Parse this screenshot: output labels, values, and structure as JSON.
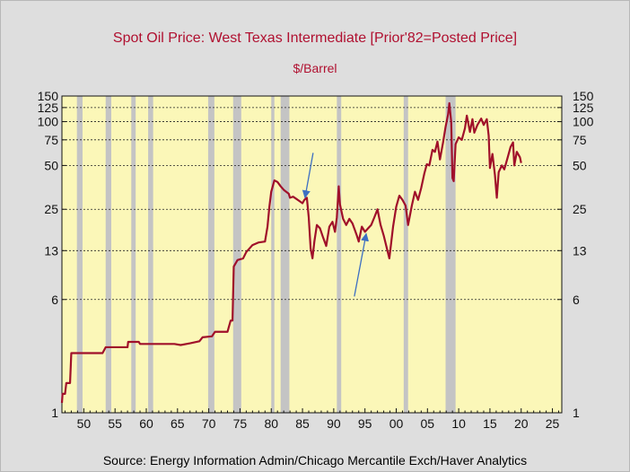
{
  "chart_data": {
    "type": "line",
    "title": "Spot Oil Price: West Texas Intermediate [Prior'82=Posted Price]",
    "subtitle": "$/Barrel",
    "source": "Source:  Energy Information Admin/Chicago Mercantile Exch/Haver Analytics",
    "y_scale": "log",
    "ylim": [
      1,
      150
    ],
    "y_ticks": [
      1,
      6,
      13,
      25,
      50,
      75,
      100,
      125,
      150
    ],
    "xlim": [
      1946.5,
      2026.5
    ],
    "x_ticks": [
      1950,
      1955,
      1960,
      1965,
      1970,
      1975,
      1980,
      1985,
      1990,
      1995,
      2000,
      2005,
      2010,
      2015,
      2020,
      2025
    ],
    "x_tick_labels": [
      "50",
      "55",
      "60",
      "65",
      "70",
      "75",
      "80",
      "85",
      "90",
      "95",
      "00",
      "05",
      "10",
      "15",
      "20",
      "25"
    ],
    "grid": "horizontal dashed at y ticks",
    "plot_background": "#fbf7b8",
    "line_color": "#a0102a",
    "recession_color": "#c4c4c4",
    "recessions": [
      [
        1948.9,
        1949.8
      ],
      [
        1953.5,
        1954.4
      ],
      [
        1957.6,
        1958.3
      ],
      [
        1960.3,
        1961.1
      ],
      [
        1969.9,
        1970.9
      ],
      [
        1973.9,
        1975.2
      ],
      [
        1980.0,
        1980.5
      ],
      [
        1981.5,
        1982.9
      ],
      [
        1990.5,
        1991.2
      ],
      [
        2001.2,
        2001.9
      ],
      [
        2007.9,
        2009.5
      ]
    ],
    "series": [
      {
        "points": [
          [
            1946.5,
            1.17
          ],
          [
            1946.6,
            1.35
          ],
          [
            1947.0,
            1.35
          ],
          [
            1947.2,
            1.6
          ],
          [
            1947.8,
            1.6
          ],
          [
            1948.0,
            2.57
          ],
          [
            1953.0,
            2.57
          ],
          [
            1953.5,
            2.82
          ],
          [
            1957.0,
            2.82
          ],
          [
            1957.1,
            3.07
          ],
          [
            1958.8,
            3.07
          ],
          [
            1959.0,
            2.97
          ],
          [
            1964.5,
            2.97
          ],
          [
            1965.5,
            2.92
          ],
          [
            1967.0,
            3.0
          ],
          [
            1968.5,
            3.1
          ],
          [
            1969.0,
            3.3
          ],
          [
            1970.5,
            3.35
          ],
          [
            1971.0,
            3.6
          ],
          [
            1973.0,
            3.6
          ],
          [
            1973.5,
            4.3
          ],
          [
            1973.8,
            4.3
          ],
          [
            1974.0,
            10.1
          ],
          [
            1974.6,
            11.2
          ],
          [
            1975.5,
            11.5
          ],
          [
            1976.0,
            12.7
          ],
          [
            1977.0,
            14.2
          ],
          [
            1978.0,
            14.8
          ],
          [
            1979.0,
            15.0
          ],
          [
            1979.4,
            19.0
          ],
          [
            1979.7,
            26.0
          ],
          [
            1980.0,
            33.0
          ],
          [
            1980.5,
            39.5
          ],
          [
            1981.0,
            38.5
          ],
          [
            1981.5,
            36.0
          ],
          [
            1982.0,
            34.0
          ],
          [
            1982.8,
            32.0
          ],
          [
            1983.0,
            30.0
          ],
          [
            1983.5,
            30.5
          ],
          [
            1984.0,
            29.5
          ],
          [
            1984.5,
            28.5
          ],
          [
            1985.0,
            27.5
          ],
          [
            1985.3,
            29.0
          ],
          [
            1985.7,
            30.0
          ],
          [
            1986.0,
            22.0
          ],
          [
            1986.3,
            13.5
          ],
          [
            1986.6,
            11.5
          ],
          [
            1986.9,
            15.0
          ],
          [
            1987.3,
            19.5
          ],
          [
            1987.8,
            18.5
          ],
          [
            1988.3,
            16.0
          ],
          [
            1988.8,
            14.0
          ],
          [
            1989.3,
            19.0
          ],
          [
            1989.8,
            20.5
          ],
          [
            1990.2,
            17.5
          ],
          [
            1990.5,
            22.0
          ],
          [
            1990.8,
            36.0
          ],
          [
            1991.0,
            27.0
          ],
          [
            1991.5,
            21.5
          ],
          [
            1992.0,
            19.5
          ],
          [
            1992.5,
            21.5
          ],
          [
            1993.0,
            20.0
          ],
          [
            1993.7,
            16.5
          ],
          [
            1994.0,
            15.0
          ],
          [
            1994.5,
            19.0
          ],
          [
            1995.0,
            17.5
          ],
          [
            1995.5,
            18.5
          ],
          [
            1996.0,
            19.5
          ],
          [
            1996.5,
            22.0
          ],
          [
            1997.0,
            25.0
          ],
          [
            1997.5,
            19.5
          ],
          [
            1998.0,
            16.5
          ],
          [
            1998.5,
            13.5
          ],
          [
            1998.9,
            11.5
          ],
          [
            1999.5,
            19.0
          ],
          [
            2000.0,
            26.0
          ],
          [
            2000.5,
            31.0
          ],
          [
            2001.0,
            29.0
          ],
          [
            2001.5,
            26.5
          ],
          [
            2001.9,
            19.5
          ],
          [
            2002.5,
            26.5
          ],
          [
            2003.0,
            33.0
          ],
          [
            2003.5,
            29.0
          ],
          [
            2004.0,
            35.0
          ],
          [
            2004.5,
            44.0
          ],
          [
            2004.9,
            51.0
          ],
          [
            2005.3,
            50.0
          ],
          [
            2005.8,
            64.0
          ],
          [
            2006.2,
            62.0
          ],
          [
            2006.6,
            73.0
          ],
          [
            2007.0,
            55.0
          ],
          [
            2007.5,
            72.0
          ],
          [
            2007.9,
            92.0
          ],
          [
            2008.3,
            112.0
          ],
          [
            2008.5,
            134.0
          ],
          [
            2008.8,
            100.0
          ],
          [
            2009.0,
            41.0
          ],
          [
            2009.2,
            39.0
          ],
          [
            2009.5,
            70.0
          ],
          [
            2010.0,
            78.0
          ],
          [
            2010.5,
            75.0
          ],
          [
            2011.0,
            90.0
          ],
          [
            2011.3,
            110.0
          ],
          [
            2011.8,
            85.0
          ],
          [
            2012.2,
            104.0
          ],
          [
            2012.5,
            84.0
          ],
          [
            2013.0,
            95.0
          ],
          [
            2013.6,
            105.0
          ],
          [
            2014.0,
            95.0
          ],
          [
            2014.5,
            104.0
          ],
          [
            2014.8,
            80.0
          ],
          [
            2015.0,
            48.0
          ],
          [
            2015.4,
            60.0
          ],
          [
            2015.8,
            43.0
          ],
          [
            2016.1,
            30.0
          ],
          [
            2016.4,
            45.0
          ],
          [
            2016.9,
            50.0
          ],
          [
            2017.3,
            47.0
          ],
          [
            2017.8,
            56.0
          ],
          [
            2018.3,
            67.0
          ],
          [
            2018.7,
            72.0
          ],
          [
            2018.9,
            50.0
          ],
          [
            2019.3,
            62.0
          ],
          [
            2019.8,
            57.0
          ],
          [
            2020.0,
            52.0
          ]
        ]
      }
    ],
    "annotations": [
      {
        "type": "arrow",
        "from": [
          1986.7,
          61.0
        ],
        "to": [
          1985.4,
          30.0
        ],
        "color": "#3d6fc2"
      },
      {
        "type": "arrow",
        "from": [
          1993.3,
          6.3
        ],
        "to": [
          1995.2,
          17.0
        ],
        "color": "#3d6fc2"
      }
    ]
  }
}
